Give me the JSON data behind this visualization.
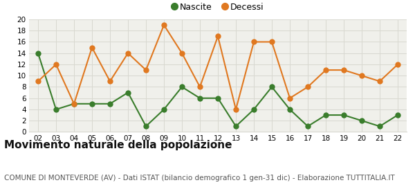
{
  "years": [
    "02",
    "03",
    "04",
    "05",
    "06",
    "07",
    "08",
    "09",
    "10",
    "11",
    "12",
    "13",
    "14",
    "15",
    "16",
    "17",
    "18",
    "19",
    "20",
    "21",
    "22"
  ],
  "nascite": [
    14,
    4,
    5,
    5,
    5,
    7,
    1,
    4,
    8,
    6,
    6,
    1,
    4,
    8,
    4,
    1,
    3,
    3,
    2,
    1,
    3
  ],
  "decessi": [
    9,
    12,
    5,
    15,
    9,
    14,
    11,
    19,
    14,
    8,
    17,
    4,
    16,
    16,
    6,
    8,
    11,
    11,
    10,
    9,
    12
  ],
  "nascite_color": "#3a7d2c",
  "decessi_color": "#e07820",
  "title": "Movimento naturale della popolazione",
  "subtitle": "COMUNE DI MONTEVERDE (AV) - Dati ISTAT (bilancio demografico 1 gen-31 dic) - Elaborazione TUTTITALIA.IT",
  "legend_nascite": "Nascite",
  "legend_decessi": "Decessi",
  "ylim": [
    0,
    20
  ],
  "yticks": [
    0,
    2,
    4,
    6,
    8,
    10,
    12,
    14,
    16,
    18,
    20
  ],
  "plot_bg": "#f0f0eb",
  "fig_bg": "#ffffff",
  "grid_color": "#d8d8d0",
  "title_fontsize": 11,
  "subtitle_fontsize": 7.5,
  "marker": "o",
  "linewidth": 1.5,
  "markersize": 5
}
